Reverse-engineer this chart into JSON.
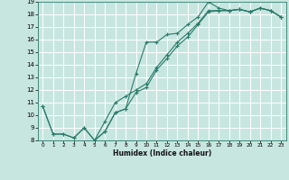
{
  "xlabel": "Humidex (Indice chaleur)",
  "xlim": [
    -0.5,
    23.5
  ],
  "ylim": [
    8,
    19
  ],
  "xticks": [
    0,
    1,
    2,
    3,
    4,
    5,
    6,
    7,
    8,
    9,
    10,
    11,
    12,
    13,
    14,
    15,
    16,
    17,
    18,
    19,
    20,
    21,
    22,
    23
  ],
  "yticks": [
    8,
    9,
    10,
    11,
    12,
    13,
    14,
    15,
    16,
    17,
    18,
    19
  ],
  "line_color": "#2a7a6a",
  "bg_color": "#c8e6e0",
  "grid_color": "#b0d8d0",
  "line1_x": [
    0,
    1,
    2,
    3,
    4,
    5,
    6,
    7,
    8,
    9,
    10,
    11,
    12,
    13,
    14,
    15,
    16,
    17,
    18,
    19,
    20,
    21,
    22,
    23
  ],
  "line1_y": [
    10.7,
    8.5,
    8.5,
    8.2,
    9.0,
    8.0,
    8.7,
    10.2,
    10.5,
    13.3,
    15.8,
    15.8,
    16.4,
    16.5,
    17.2,
    17.8,
    19.0,
    18.5,
    18.3,
    18.4,
    18.2,
    18.5,
    18.3,
    17.8
  ],
  "line2_x": [
    0,
    1,
    2,
    3,
    4,
    5,
    6,
    7,
    8,
    9,
    10,
    11,
    12,
    13,
    14,
    15,
    16,
    17,
    18,
    19,
    20,
    21,
    22,
    23
  ],
  "line2_y": [
    10.7,
    8.5,
    8.5,
    8.2,
    9.0,
    8.0,
    9.5,
    11.0,
    11.5,
    12.0,
    12.5,
    13.8,
    14.8,
    15.8,
    16.5,
    17.3,
    18.3,
    18.3,
    18.3,
    18.4,
    18.2,
    18.5,
    18.3,
    17.8
  ],
  "line3_x": [
    5,
    6,
    7,
    8,
    9,
    10,
    11,
    12,
    13,
    14,
    15,
    16,
    17,
    18,
    19,
    20,
    21,
    22,
    23
  ],
  "line3_y": [
    8.0,
    8.7,
    10.2,
    10.5,
    11.8,
    12.2,
    13.6,
    14.5,
    15.5,
    16.2,
    17.2,
    18.2,
    18.3,
    18.3,
    18.4,
    18.2,
    18.5,
    18.3,
    17.8
  ]
}
